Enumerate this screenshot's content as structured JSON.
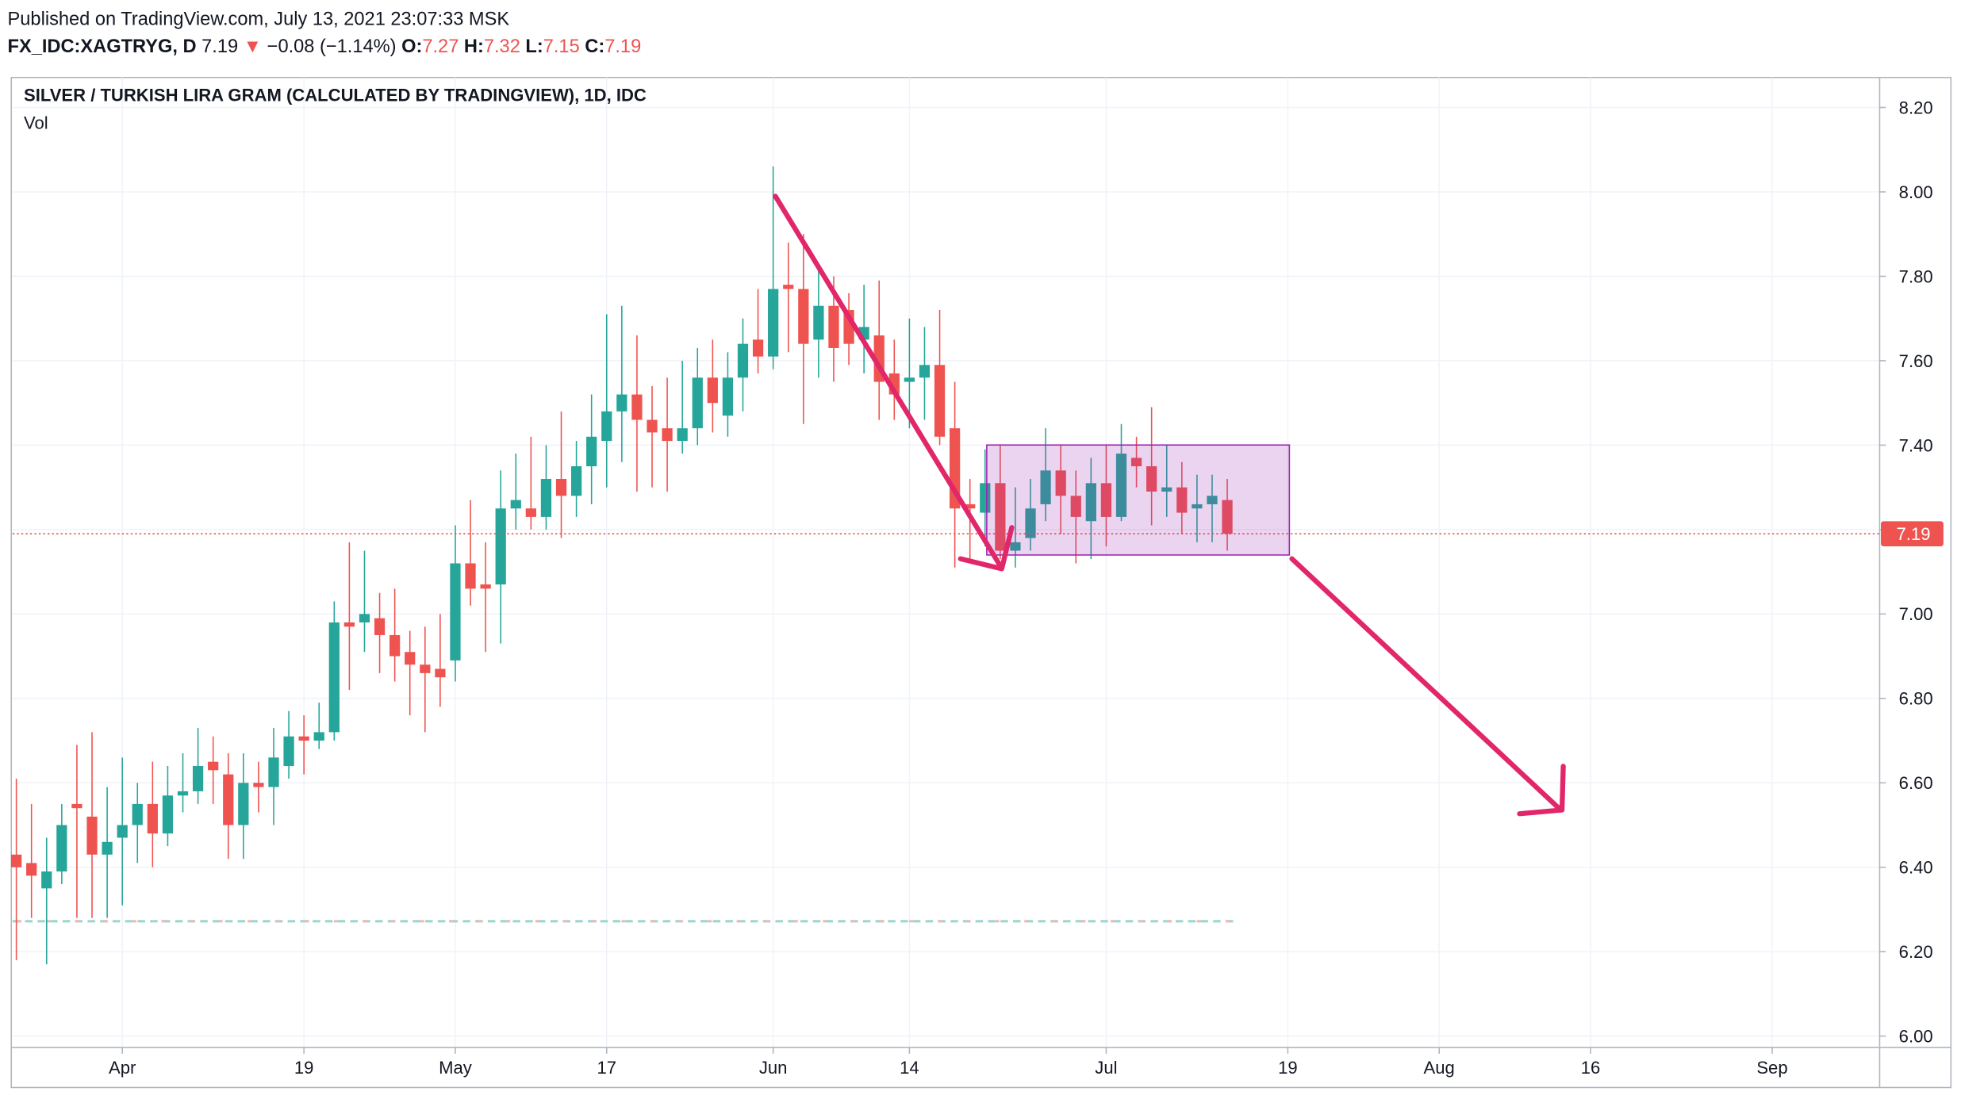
{
  "header": {
    "published": "Published on TradingView.com, July 13, 2021 23:07:33 MSK",
    "symbol": "FX_IDC:XAGTRYG, D",
    "arrow": "▼",
    "change": "−0.08 (−1.14%)",
    "ohlc_labels": [
      "O:",
      "H:",
      "L:",
      "C:"
    ]
  },
  "chart_data": {
    "type": "candlestick",
    "title": "SILVER / TURKISH LIRA GRAM (CALCULATED BY TRADINGVIEW), 1D, IDC",
    "subtitle": "Vol",
    "up_color": "#26a69a",
    "down_color": "#ef5350",
    "x": [
      0,
      1,
      2,
      3,
      4,
      5,
      6,
      7,
      8,
      9,
      10,
      11,
      12,
      13,
      14,
      15,
      16,
      17,
      18,
      19,
      20,
      21,
      22,
      23,
      24,
      25,
      26,
      27,
      28,
      29,
      30,
      31,
      32,
      33,
      34,
      35,
      36,
      37,
      38,
      39,
      40,
      41,
      42,
      43,
      44,
      45,
      46,
      47,
      48,
      49,
      50,
      51,
      52,
      53,
      54,
      55,
      56,
      57,
      58,
      59,
      60,
      61,
      62,
      63,
      64,
      65,
      66,
      67,
      68,
      69,
      70,
      71,
      72,
      73,
      74,
      75,
      76,
      77,
      78,
      79,
      80
    ],
    "open": [
      6.43,
      6.41,
      6.35,
      6.39,
      6.55,
      6.52,
      6.43,
      6.47,
      6.5,
      6.55,
      6.48,
      6.57,
      6.58,
      6.65,
      6.62,
      6.5,
      6.6,
      6.59,
      6.64,
      6.71,
      6.7,
      6.72,
      6.98,
      6.98,
      6.99,
      6.95,
      6.91,
      6.88,
      6.87,
      6.89,
      7.12,
      7.07,
      7.07,
      7.25,
      7.25,
      7.23,
      7.32,
      7.28,
      7.35,
      7.41,
      7.48,
      7.52,
      7.46,
      7.44,
      7.41,
      7.44,
      7.56,
      7.47,
      7.56,
      7.65,
      7.61,
      7.78,
      7.77,
      7.65,
      7.73,
      7.72,
      7.65,
      7.66,
      7.57,
      7.55,
      7.56,
      7.59,
      7.44,
      7.26,
      7.24,
      7.31,
      7.15,
      7.18,
      7.26,
      7.34,
      7.28,
      7.22,
      7.31,
      7.23,
      7.37,
      7.35,
      7.29,
      7.3,
      7.25,
      7.26,
      7.27
    ],
    "high": [
      6.61,
      6.55,
      6.47,
      6.55,
      6.69,
      6.72,
      6.59,
      6.66,
      6.6,
      6.65,
      6.64,
      6.67,
      6.73,
      6.71,
      6.67,
      6.67,
      6.65,
      6.73,
      6.77,
      6.76,
      6.79,
      7.03,
      7.17,
      7.15,
      7.05,
      7.06,
      6.96,
      6.97,
      7.0,
      7.21,
      7.27,
      7.17,
      7.34,
      7.38,
      7.42,
      7.4,
      7.48,
      7.41,
      7.52,
      7.71,
      7.73,
      7.66,
      7.54,
      7.56,
      7.6,
      7.63,
      7.65,
      7.62,
      7.7,
      7.77,
      8.06,
      7.88,
      7.9,
      7.82,
      7.8,
      7.76,
      7.78,
      7.79,
      7.65,
      7.7,
      7.68,
      7.72,
      7.55,
      7.32,
      7.39,
      7.4,
      7.3,
      7.32,
      7.44,
      7.4,
      7.34,
      7.37,
      7.4,
      7.45,
      7.42,
      7.49,
      7.4,
      7.36,
      7.33,
      7.33,
      7.32
    ],
    "low": [
      6.18,
      6.28,
      6.17,
      6.36,
      6.28,
      6.28,
      6.28,
      6.31,
      6.41,
      6.4,
      6.45,
      6.53,
      6.55,
      6.55,
      6.42,
      6.42,
      6.53,
      6.5,
      6.61,
      6.62,
      6.68,
      6.7,
      6.82,
      6.91,
      6.86,
      6.84,
      6.76,
      6.72,
      6.78,
      6.84,
      7.02,
      6.91,
      6.93,
      7.2,
      7.2,
      7.2,
      7.18,
      7.23,
      7.26,
      7.3,
      7.36,
      7.29,
      7.3,
      7.29,
      7.38,
      7.4,
      7.43,
      7.42,
      7.48,
      7.57,
      7.58,
      7.62,
      7.45,
      7.56,
      7.55,
      7.59,
      7.57,
      7.46,
      7.46,
      7.44,
      7.46,
      7.4,
      7.11,
      7.13,
      7.16,
      7.13,
      7.11,
      7.15,
      7.22,
      7.19,
      7.12,
      7.13,
      7.16,
      7.22,
      7.3,
      7.21,
      7.23,
      7.19,
      7.17,
      7.17,
      7.15
    ],
    "close": [
      6.4,
      6.38,
      6.39,
      6.5,
      6.54,
      6.43,
      6.46,
      6.5,
      6.55,
      6.48,
      6.57,
      6.58,
      6.64,
      6.63,
      6.5,
      6.6,
      6.59,
      6.66,
      6.71,
      6.7,
      6.72,
      6.98,
      6.97,
      7.0,
      6.95,
      6.9,
      6.88,
      6.86,
      6.85,
      7.12,
      7.06,
      7.06,
      7.25,
      7.27,
      7.23,
      7.32,
      7.28,
      7.35,
      7.42,
      7.48,
      7.52,
      7.46,
      7.43,
      7.41,
      7.44,
      7.56,
      7.5,
      7.56,
      7.64,
      7.61,
      7.77,
      7.77,
      7.64,
      7.73,
      7.63,
      7.64,
      7.68,
      7.55,
      7.52,
      7.56,
      7.59,
      7.42,
      7.25,
      7.25,
      7.31,
      7.15,
      7.17,
      7.25,
      7.34,
      7.28,
      7.23,
      7.31,
      7.23,
      7.38,
      7.35,
      7.29,
      7.3,
      7.24,
      7.26,
      7.28,
      7.19
    ],
    "xlim": [
      -0.25,
      123.1
    ],
    "xticks": [
      {
        "value": 7,
        "label": "Apr"
      },
      19,
      {
        "value": 29,
        "label": "May"
      },
      {
        "value": 39,
        "label": "17"
      },
      {
        "value": 50,
        "label": "Jun"
      },
      {
        "value": 59,
        "label": "14"
      },
      {
        "value": 72,
        "label": "Jul"
      },
      {
        "value": 84,
        "label": "19"
      },
      {
        "value": 94,
        "label": "Aug"
      },
      {
        "value": 104,
        "label": "16"
      },
      {
        "value": 116,
        "label": "Sep"
      }
    ],
    "ylim": [
      5.973,
      8.271
    ],
    "yticks": [
      {
        "value": 6.0,
        "label": "6.00"
      },
      {
        "value": 6.2,
        "label": "6.20"
      },
      {
        "value": 6.4,
        "label": "6.40"
      },
      {
        "value": 6.6,
        "label": "6.60"
      },
      {
        "value": 6.8,
        "label": "6.80"
      },
      {
        "value": 7.0,
        "label": "7.00"
      },
      {
        "value": 7.2,
        "label": "7.20"
      },
      {
        "value": 7.4,
        "label": "7.40"
      },
      {
        "value": 7.6,
        "label": "7.60"
      },
      {
        "value": 7.8,
        "label": "7.80"
      },
      {
        "value": 8.0,
        "label": "8.00"
      },
      {
        "value": 8.2,
        "label": "8.20"
      }
    ],
    "grid": true
  }
}
